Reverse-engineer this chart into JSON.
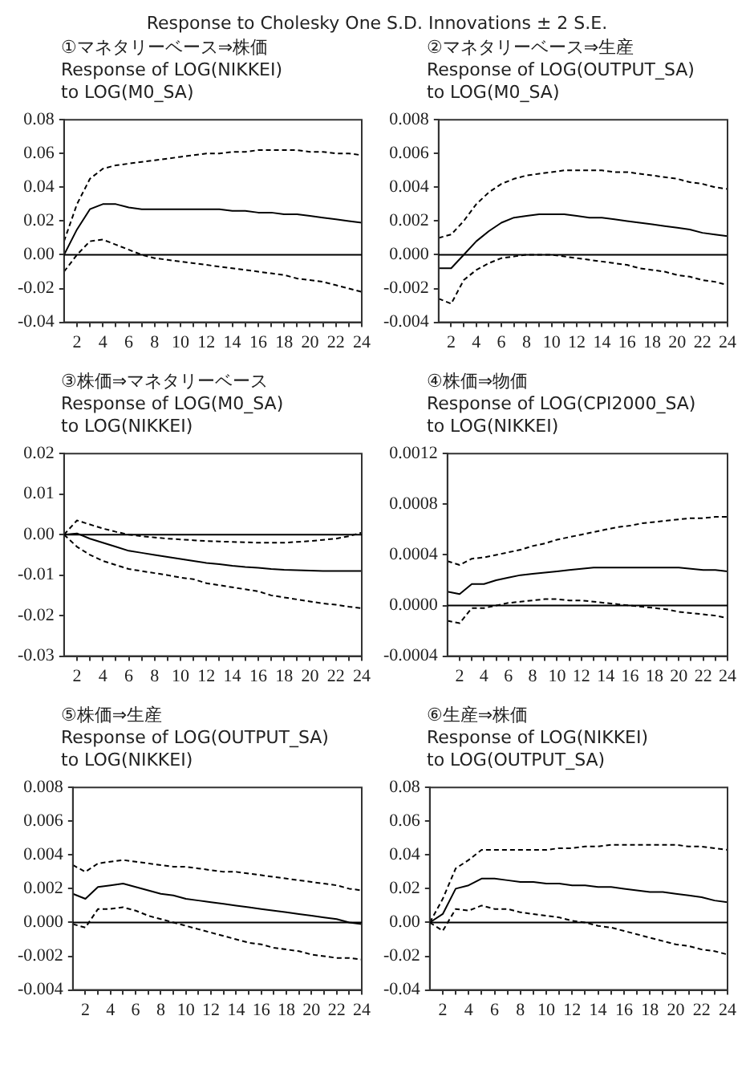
{
  "chart_data": [
    {
      "type": "line",
      "title": "①マネタリーベース⇒株価",
      "subtitle": "Response of LOG(NIKKEI)\nto LOG(M0_SA)",
      "annotations": [
        "Response to Cholesky One S.D. Innovations ± 2 S.E."
      ],
      "marker": "none",
      "grid": false,
      "x": [
        1,
        2,
        3,
        4,
        5,
        6,
        7,
        8,
        9,
        10,
        11,
        12,
        13,
        14,
        15,
        16,
        17,
        18,
        19,
        20,
        21,
        22,
        23,
        24
      ],
      "xlim": [
        1,
        24
      ],
      "xticks": [
        {
          "value": 2,
          "label": "2"
        },
        {
          "value": 3,
          "label": null
        },
        {
          "value": 4,
          "label": "4"
        },
        {
          "value": 5,
          "label": null
        },
        {
          "value": 6,
          "label": "6"
        },
        {
          "value": 7,
          "label": null
        },
        {
          "value": 8,
          "label": "8"
        },
        {
          "value": 9,
          "label": null
        },
        {
          "value": 10,
          "label": "10"
        },
        {
          "value": 11,
          "label": null
        },
        {
          "value": 12,
          "label": "12"
        },
        {
          "value": 13,
          "label": null
        },
        {
          "value": 14,
          "label": "14"
        },
        {
          "value": 15,
          "label": null
        },
        {
          "value": 16,
          "label": "16"
        },
        {
          "value": 17,
          "label": null
        },
        {
          "value": 18,
          "label": "18"
        },
        {
          "value": 19,
          "label": null
        },
        {
          "value": 20,
          "label": "20"
        },
        {
          "value": 21,
          "label": null
        },
        {
          "value": 22,
          "label": "22"
        },
        {
          "value": 23,
          "label": null
        },
        {
          "value": 24,
          "label": "24"
        }
      ],
      "ylim": [
        -0.04,
        0.08
      ],
      "yticks": [
        {
          "value": -0.04,
          "label": "-0.04"
        },
        {
          "value": -0.02,
          "label": "-0.02"
        },
        {
          "value": 0,
          "label": "0.00"
        },
        {
          "value": 0.02,
          "label": "0.02"
        },
        {
          "value": 0.04,
          "label": "0.04"
        },
        {
          "value": 0.06,
          "label": "0.06"
        },
        {
          "value": 0.08,
          "label": "0.08"
        }
      ],
      "ref_lines": [
        {
          "axis": "y",
          "value": 0,
          "color": "#000000"
        }
      ],
      "series": [
        {
          "color": "#000000",
          "line_style": "solid",
          "values": [
            0.0,
            0.015,
            0.027,
            0.03,
            0.03,
            0.028,
            0.027,
            0.027,
            0.027,
            0.027,
            0.027,
            0.027,
            0.027,
            0.026,
            0.026,
            0.025,
            0.025,
            0.024,
            0.024,
            0.023,
            0.022,
            0.021,
            0.02,
            0.019
          ]
        },
        {
          "color": "#000000",
          "line_style": "dashed",
          "values": [
            0.008,
            0.03,
            0.045,
            0.051,
            0.053,
            0.054,
            0.055,
            0.056,
            0.057,
            0.058,
            0.059,
            0.06,
            0.06,
            0.061,
            0.061,
            0.062,
            0.062,
            0.062,
            0.062,
            0.061,
            0.061,
            0.06,
            0.06,
            0.059
          ]
        },
        {
          "color": "#000000",
          "line_style": "dashed",
          "values": [
            -0.01,
            0.0,
            0.008,
            0.009,
            0.006,
            0.003,
            0.0,
            -0.002,
            -0.003,
            -0.004,
            -0.005,
            -0.006,
            -0.007,
            -0.008,
            -0.009,
            -0.01,
            -0.011,
            -0.012,
            -0.014,
            -0.015,
            -0.016,
            -0.018,
            -0.02,
            -0.022
          ]
        }
      ]
    },
    {
      "type": "line",
      "title": "②マネタリーベース⇒生産",
      "subtitle": "Response of LOG(OUTPUT_SA)\nto LOG(M0_SA)",
      "marker": "none",
      "grid": false,
      "x": [
        1,
        2,
        3,
        4,
        5,
        6,
        7,
        8,
        9,
        10,
        11,
        12,
        13,
        14,
        15,
        16,
        17,
        18,
        19,
        20,
        21,
        22,
        23,
        24
      ],
      "xlim": [
        1,
        24
      ],
      "xticks": [
        {
          "value": 2,
          "label": "2"
        },
        {
          "value": 3,
          "label": null
        },
        {
          "value": 4,
          "label": "4"
        },
        {
          "value": 5,
          "label": null
        },
        {
          "value": 6,
          "label": "6"
        },
        {
          "value": 7,
          "label": null
        },
        {
          "value": 8,
          "label": "8"
        },
        {
          "value": 9,
          "label": null
        },
        {
          "value": 10,
          "label": "10"
        },
        {
          "value": 11,
          "label": null
        },
        {
          "value": 12,
          "label": "12"
        },
        {
          "value": 13,
          "label": null
        },
        {
          "value": 14,
          "label": "14"
        },
        {
          "value": 15,
          "label": null
        },
        {
          "value": 16,
          "label": "16"
        },
        {
          "value": 17,
          "label": null
        },
        {
          "value": 18,
          "label": "18"
        },
        {
          "value": 19,
          "label": null
        },
        {
          "value": 20,
          "label": "20"
        },
        {
          "value": 21,
          "label": null
        },
        {
          "value": 22,
          "label": "22"
        },
        {
          "value": 23,
          "label": null
        },
        {
          "value": 24,
          "label": "24"
        }
      ],
      "ylim": [
        -0.004,
        0.008
      ],
      "yticks": [
        {
          "value": -0.004,
          "label": "-0.004"
        },
        {
          "value": -0.002,
          "label": "-0.002"
        },
        {
          "value": 0,
          "label": "0.000"
        },
        {
          "value": 0.002,
          "label": "0.002"
        },
        {
          "value": 0.004,
          "label": "0.004"
        },
        {
          "value": 0.006,
          "label": "0.006"
        },
        {
          "value": 0.008,
          "label": "0.008"
        }
      ],
      "ref_lines": [
        {
          "axis": "y",
          "value": 0,
          "color": "#000000"
        }
      ],
      "series": [
        {
          "color": "#000000",
          "line_style": "solid",
          "values": [
            -0.0008,
            -0.0008,
            0.0,
            0.0008,
            0.0014,
            0.0019,
            0.0022,
            0.0023,
            0.0024,
            0.0024,
            0.0024,
            0.0023,
            0.0022,
            0.0022,
            0.0021,
            0.002,
            0.0019,
            0.0018,
            0.0017,
            0.0016,
            0.0015,
            0.0013,
            0.0012,
            0.0011
          ]
        },
        {
          "color": "#000000",
          "line_style": "dashed",
          "values": [
            0.001,
            0.0012,
            0.002,
            0.003,
            0.0037,
            0.0042,
            0.0045,
            0.0047,
            0.0048,
            0.0049,
            0.005,
            0.005,
            0.005,
            0.005,
            0.0049,
            0.0049,
            0.0048,
            0.0047,
            0.0046,
            0.0045,
            0.0043,
            0.0042,
            0.004,
            0.0039
          ]
        },
        {
          "color": "#000000",
          "line_style": "dashed",
          "values": [
            -0.0026,
            -0.0029,
            -0.0015,
            -0.0009,
            -0.0005,
            -0.0002,
            -0.0001,
            0.0,
            0.0,
            0.0,
            -0.0001,
            -0.0002,
            -0.0003,
            -0.0004,
            -0.0005,
            -0.0006,
            -0.0008,
            -0.0009,
            -0.001,
            -0.0012,
            -0.0013,
            -0.0015,
            -0.0016,
            -0.0018
          ]
        }
      ]
    },
    {
      "type": "line",
      "title": "③株価⇒マネタリーベース",
      "subtitle": "Response of LOG(M0_SA)\nto LOG(NIKKEI)",
      "marker": "none",
      "grid": false,
      "x": [
        1,
        2,
        3,
        4,
        5,
        6,
        7,
        8,
        9,
        10,
        11,
        12,
        13,
        14,
        15,
        16,
        17,
        18,
        19,
        20,
        21,
        22,
        23,
        24
      ],
      "xlim": [
        1,
        24
      ],
      "xticks": [
        {
          "value": 2,
          "label": "2"
        },
        {
          "value": 3,
          "label": null
        },
        {
          "value": 4,
          "label": "4"
        },
        {
          "value": 5,
          "label": null
        },
        {
          "value": 6,
          "label": "6"
        },
        {
          "value": 7,
          "label": null
        },
        {
          "value": 8,
          "label": "8"
        },
        {
          "value": 9,
          "label": null
        },
        {
          "value": 10,
          "label": "10"
        },
        {
          "value": 11,
          "label": null
        },
        {
          "value": 12,
          "label": "12"
        },
        {
          "value": 13,
          "label": null
        },
        {
          "value": 14,
          "label": "14"
        },
        {
          "value": 15,
          "label": null
        },
        {
          "value": 16,
          "label": "16"
        },
        {
          "value": 17,
          "label": null
        },
        {
          "value": 18,
          "label": "18"
        },
        {
          "value": 19,
          "label": null
        },
        {
          "value": 20,
          "label": "20"
        },
        {
          "value": 21,
          "label": null
        },
        {
          "value": 22,
          "label": "22"
        },
        {
          "value": 23,
          "label": null
        },
        {
          "value": 24,
          "label": "24"
        }
      ],
      "ylim": [
        -0.03,
        0.02
      ],
      "yticks": [
        {
          "value": -0.03,
          "label": "-0.03"
        },
        {
          "value": -0.02,
          "label": "-0.02"
        },
        {
          "value": -0.01,
          "label": "-0.01"
        },
        {
          "value": 0,
          "label": "0.00"
        },
        {
          "value": 0.01,
          "label": "0.01"
        },
        {
          "value": 0.02,
          "label": "0.02"
        }
      ],
      "ref_lines": [
        {
          "axis": "y",
          "value": 0,
          "color": "#000000"
        }
      ],
      "series": [
        {
          "color": "#000000",
          "line_style": "solid",
          "values": [
            0.0,
            0.0003,
            -0.001,
            -0.002,
            -0.003,
            -0.004,
            -0.0045,
            -0.005,
            -0.0055,
            -0.006,
            -0.0065,
            -0.007,
            -0.0073,
            -0.0077,
            -0.008,
            -0.0082,
            -0.0085,
            -0.0087,
            -0.0088,
            -0.0089,
            -0.009,
            -0.009,
            -0.009,
            -0.009
          ]
        },
        {
          "color": "#000000",
          "line_style": "dashed",
          "values": [
            0.0,
            0.0035,
            0.0025,
            0.0015,
            0.0007,
            0.0,
            -0.0004,
            -0.0007,
            -0.001,
            -0.0012,
            -0.0014,
            -0.0016,
            -0.0017,
            -0.0018,
            -0.0019,
            -0.002,
            -0.002,
            -0.002,
            -0.0018,
            -0.0016,
            -0.0013,
            -0.001,
            -0.0004,
            0.0005
          ]
        },
        {
          "color": "#000000",
          "line_style": "dashed",
          "values": [
            0.0,
            -0.003,
            -0.005,
            -0.0065,
            -0.0075,
            -0.0085,
            -0.009,
            -0.0095,
            -0.01,
            -0.0106,
            -0.011,
            -0.012,
            -0.0125,
            -0.013,
            -0.0135,
            -0.014,
            -0.015,
            -0.0155,
            -0.016,
            -0.0165,
            -0.017,
            -0.0173,
            -0.0178,
            -0.0182
          ]
        }
      ]
    },
    {
      "type": "line",
      "title": "④株価⇒物価",
      "subtitle": "Response of LOG(CPI2000_SA)\nto LOG(NIKKEI)",
      "marker": "none",
      "grid": false,
      "x": [
        1,
        2,
        3,
        4,
        5,
        6,
        7,
        8,
        9,
        10,
        11,
        12,
        13,
        14,
        15,
        16,
        17,
        18,
        19,
        20,
        21,
        22,
        23,
        24
      ],
      "xlim": [
        1,
        24
      ],
      "xticks": [
        {
          "value": 2,
          "label": "2"
        },
        {
          "value": 3,
          "label": null
        },
        {
          "value": 4,
          "label": "4"
        },
        {
          "value": 5,
          "label": null
        },
        {
          "value": 6,
          "label": "6"
        },
        {
          "value": 7,
          "label": null
        },
        {
          "value": 8,
          "label": "8"
        },
        {
          "value": 9,
          "label": null
        },
        {
          "value": 10,
          "label": "10"
        },
        {
          "value": 11,
          "label": null
        },
        {
          "value": 12,
          "label": "12"
        },
        {
          "value": 13,
          "label": null
        },
        {
          "value": 14,
          "label": "14"
        },
        {
          "value": 15,
          "label": null
        },
        {
          "value": 16,
          "label": "16"
        },
        {
          "value": 17,
          "label": null
        },
        {
          "value": 18,
          "label": "18"
        },
        {
          "value": 19,
          "label": null
        },
        {
          "value": 20,
          "label": "20"
        },
        {
          "value": 21,
          "label": null
        },
        {
          "value": 22,
          "label": "22"
        },
        {
          "value": 23,
          "label": null
        },
        {
          "value": 24,
          "label": "24"
        }
      ],
      "ylim": [
        -0.0004,
        0.0012
      ],
      "yticks": [
        {
          "value": -0.0004,
          "label": "-0.0004"
        },
        {
          "value": 0,
          "label": "0.0000"
        },
        {
          "value": 0.0004,
          "label": "0.0004"
        },
        {
          "value": 0.0008,
          "label": "0.0008"
        },
        {
          "value": 0.0012,
          "label": "0.0012"
        }
      ],
      "ref_lines": [
        {
          "axis": "y",
          "value": 0,
          "color": "#000000"
        }
      ],
      "series": [
        {
          "color": "#000000",
          "line_style": "solid",
          "values": [
            0.00011,
            9e-05,
            0.00017,
            0.00017,
            0.0002,
            0.00022,
            0.00024,
            0.00025,
            0.00026,
            0.00027,
            0.00028,
            0.00029,
            0.0003,
            0.0003,
            0.0003,
            0.0003,
            0.0003,
            0.0003,
            0.0003,
            0.0003,
            0.00029,
            0.00028,
            0.00028,
            0.00027
          ]
        },
        {
          "color": "#000000",
          "line_style": "dashed",
          "values": [
            0.00035,
            0.00032,
            0.00037,
            0.00038,
            0.0004,
            0.00042,
            0.00044,
            0.00047,
            0.00049,
            0.00052,
            0.00054,
            0.00056,
            0.00058,
            0.0006,
            0.00062,
            0.00063,
            0.00065,
            0.00066,
            0.00067,
            0.00068,
            0.00069,
            0.00069,
            0.0007,
            0.0007
          ]
        },
        {
          "color": "#000000",
          "line_style": "dashed",
          "values": [
            -0.00012,
            -0.00014,
            -2e-05,
            -2e-05,
            0.0,
            2e-05,
            3e-05,
            4e-05,
            5e-05,
            5e-05,
            4e-05,
            4e-05,
            3e-05,
            2e-05,
            1e-05,
            0.0,
            -1e-05,
            -2e-05,
            -3e-05,
            -5e-05,
            -6e-05,
            -7e-05,
            -8e-05,
            -0.0001
          ]
        }
      ]
    },
    {
      "type": "line",
      "title": "⑤株価⇒生産",
      "subtitle": "Response of LOG(OUTPUT_SA)\nto LOG(NIKKEI)",
      "marker": "none",
      "grid": false,
      "x": [
        1,
        2,
        3,
        4,
        5,
        6,
        7,
        8,
        9,
        10,
        11,
        12,
        13,
        14,
        15,
        16,
        17,
        18,
        19,
        20,
        21,
        22,
        23,
        24
      ],
      "xlim": [
        1,
        24
      ],
      "xticks": [
        {
          "value": 2,
          "label": "2"
        },
        {
          "value": 3,
          "label": null
        },
        {
          "value": 4,
          "label": "4"
        },
        {
          "value": 5,
          "label": null
        },
        {
          "value": 6,
          "label": "6"
        },
        {
          "value": 7,
          "label": null
        },
        {
          "value": 8,
          "label": "8"
        },
        {
          "value": 9,
          "label": null
        },
        {
          "value": 10,
          "label": "10"
        },
        {
          "value": 11,
          "label": null
        },
        {
          "value": 12,
          "label": "12"
        },
        {
          "value": 13,
          "label": null
        },
        {
          "value": 14,
          "label": "14"
        },
        {
          "value": 15,
          "label": null
        },
        {
          "value": 16,
          "label": "16"
        },
        {
          "value": 17,
          "label": null
        },
        {
          "value": 18,
          "label": "18"
        },
        {
          "value": 19,
          "label": null
        },
        {
          "value": 20,
          "label": "20"
        },
        {
          "value": 21,
          "label": null
        },
        {
          "value": 22,
          "label": "22"
        },
        {
          "value": 23,
          "label": null
        },
        {
          "value": 24,
          "label": "24"
        }
      ],
      "ylim": [
        -0.004,
        0.008
      ],
      "yticks": [
        {
          "value": -0.004,
          "label": "-0.004"
        },
        {
          "value": -0.002,
          "label": "-0.002"
        },
        {
          "value": 0,
          "label": "0.000"
        },
        {
          "value": 0.002,
          "label": "0.002"
        },
        {
          "value": 0.004,
          "label": "0.004"
        },
        {
          "value": 0.006,
          "label": "0.006"
        },
        {
          "value": 0.008,
          "label": "0.008"
        }
      ],
      "ref_lines": [
        {
          "axis": "y",
          "value": 0,
          "color": "#000000"
        }
      ],
      "series": [
        {
          "color": "#000000",
          "line_style": "solid",
          "values": [
            0.0017,
            0.0014,
            0.0021,
            0.0022,
            0.0023,
            0.0021,
            0.0019,
            0.0017,
            0.0016,
            0.0014,
            0.0013,
            0.0012,
            0.0011,
            0.001,
            0.0009,
            0.0008,
            0.0007,
            0.0006,
            0.0005,
            0.0004,
            0.0003,
            0.0002,
            0.0,
            -0.0001
          ]
        },
        {
          "color": "#000000",
          "line_style": "dashed",
          "values": [
            0.0034,
            0.003,
            0.0035,
            0.0036,
            0.0037,
            0.0036,
            0.0035,
            0.0034,
            0.0033,
            0.0033,
            0.0032,
            0.0031,
            0.003,
            0.003,
            0.0029,
            0.0028,
            0.0027,
            0.0026,
            0.0025,
            0.0024,
            0.0023,
            0.0022,
            0.002,
            0.0019
          ]
        },
        {
          "color": "#000000",
          "line_style": "dashed",
          "values": [
            -0.0001,
            -0.0003,
            0.0008,
            0.0008,
            0.0009,
            0.0007,
            0.0004,
            0.0002,
            0.0,
            -0.0002,
            -0.0004,
            -0.0006,
            -0.0008,
            -0.001,
            -0.0012,
            -0.0013,
            -0.0015,
            -0.0016,
            -0.0017,
            -0.0019,
            -0.002,
            -0.0021,
            -0.0021,
            -0.0022
          ]
        }
      ]
    },
    {
      "type": "line",
      "title": "⑥生産⇒株価",
      "subtitle": "Response of LOG(NIKKEI)\nto LOG(OUTPUT_SA)",
      "marker": "none",
      "grid": false,
      "x": [
        1,
        2,
        3,
        4,
        5,
        6,
        7,
        8,
        9,
        10,
        11,
        12,
        13,
        14,
        15,
        16,
        17,
        18,
        19,
        20,
        21,
        22,
        23,
        24
      ],
      "xlim": [
        1,
        24
      ],
      "xticks": [
        {
          "value": 2,
          "label": "2"
        },
        {
          "value": 3,
          "label": null
        },
        {
          "value": 4,
          "label": "4"
        },
        {
          "value": 5,
          "label": null
        },
        {
          "value": 6,
          "label": "6"
        },
        {
          "value": 7,
          "label": null
        },
        {
          "value": 8,
          "label": "8"
        },
        {
          "value": 9,
          "label": null
        },
        {
          "value": 10,
          "label": "10"
        },
        {
          "value": 11,
          "label": null
        },
        {
          "value": 12,
          "label": "12"
        },
        {
          "value": 13,
          "label": null
        },
        {
          "value": 14,
          "label": "14"
        },
        {
          "value": 15,
          "label": null
        },
        {
          "value": 16,
          "label": "16"
        },
        {
          "value": 17,
          "label": null
        },
        {
          "value": 18,
          "label": "18"
        },
        {
          "value": 19,
          "label": null
        },
        {
          "value": 20,
          "label": "20"
        },
        {
          "value": 21,
          "label": null
        },
        {
          "value": 22,
          "label": "22"
        },
        {
          "value": 23,
          "label": null
        },
        {
          "value": 24,
          "label": "24"
        }
      ],
      "ylim": [
        -0.04,
        0.08
      ],
      "yticks": [
        {
          "value": -0.04,
          "label": "-0.04"
        },
        {
          "value": -0.02,
          "label": "-0.02"
        },
        {
          "value": 0,
          "label": "0.00"
        },
        {
          "value": 0.02,
          "label": "0.02"
        },
        {
          "value": 0.04,
          "label": "0.04"
        },
        {
          "value": 0.06,
          "label": "0.06"
        },
        {
          "value": 0.08,
          "label": "0.08"
        }
      ],
      "ref_lines": [
        {
          "axis": "y",
          "value": 0,
          "color": "#000000"
        }
      ],
      "series": [
        {
          "color": "#000000",
          "line_style": "solid",
          "values": [
            0.0,
            0.005,
            0.02,
            0.022,
            0.026,
            0.026,
            0.025,
            0.024,
            0.024,
            0.023,
            0.023,
            0.022,
            0.022,
            0.021,
            0.021,
            0.02,
            0.019,
            0.018,
            0.018,
            0.017,
            0.016,
            0.015,
            0.013,
            0.012
          ]
        },
        {
          "color": "#000000",
          "line_style": "dashed",
          "values": [
            0.0,
            0.014,
            0.032,
            0.037,
            0.043,
            0.043,
            0.043,
            0.043,
            0.043,
            0.043,
            0.044,
            0.044,
            0.045,
            0.045,
            0.046,
            0.046,
            0.046,
            0.046,
            0.046,
            0.046,
            0.045,
            0.045,
            0.044,
            0.043
          ]
        },
        {
          "color": "#000000",
          "line_style": "dashed",
          "values": [
            0.0,
            -0.005,
            0.008,
            0.007,
            0.01,
            0.008,
            0.008,
            0.006,
            0.005,
            0.004,
            0.003,
            0.001,
            0.0,
            -0.002,
            -0.003,
            -0.005,
            -0.007,
            -0.009,
            -0.011,
            -0.013,
            -0.014,
            -0.016,
            -0.017,
            -0.019
          ]
        }
      ]
    }
  ]
}
